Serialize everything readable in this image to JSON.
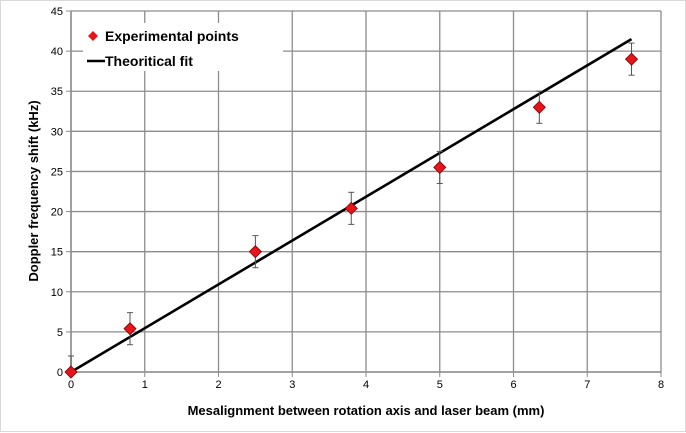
{
  "chart_data": {
    "type": "scatter",
    "title": "",
    "xlabel": "Mesalignment between rotation axis and laser beam (mm)",
    "ylabel": "Doppler frequency shift (kHz)",
    "xlim": [
      0,
      8
    ],
    "ylim": [
      0,
      45
    ],
    "x_ticks": [
      0,
      1,
      2,
      3,
      4,
      5,
      6,
      7,
      8
    ],
    "y_ticks": [
      0,
      5,
      10,
      15,
      20,
      25,
      30,
      35,
      40,
      45
    ],
    "grid": true,
    "legend_position": "top-left",
    "series": [
      {
        "name": "Experimental points",
        "kind": "markers",
        "marker": "diamond",
        "color": "#e8141a",
        "x": [
          0,
          0.8,
          2.5,
          3.8,
          5.0,
          6.35,
          7.6
        ],
        "y": [
          0,
          5.4,
          15.0,
          20.4,
          25.5,
          33.0,
          39.0
        ],
        "error": [
          2.0,
          2.0,
          2.0,
          2.0,
          2.0,
          2.0,
          2.0
        ]
      },
      {
        "name": "Theoritical fit",
        "kind": "line",
        "color": "#000000",
        "x": [
          0,
          7.6
        ],
        "y": [
          0,
          41.5
        ]
      }
    ]
  }
}
